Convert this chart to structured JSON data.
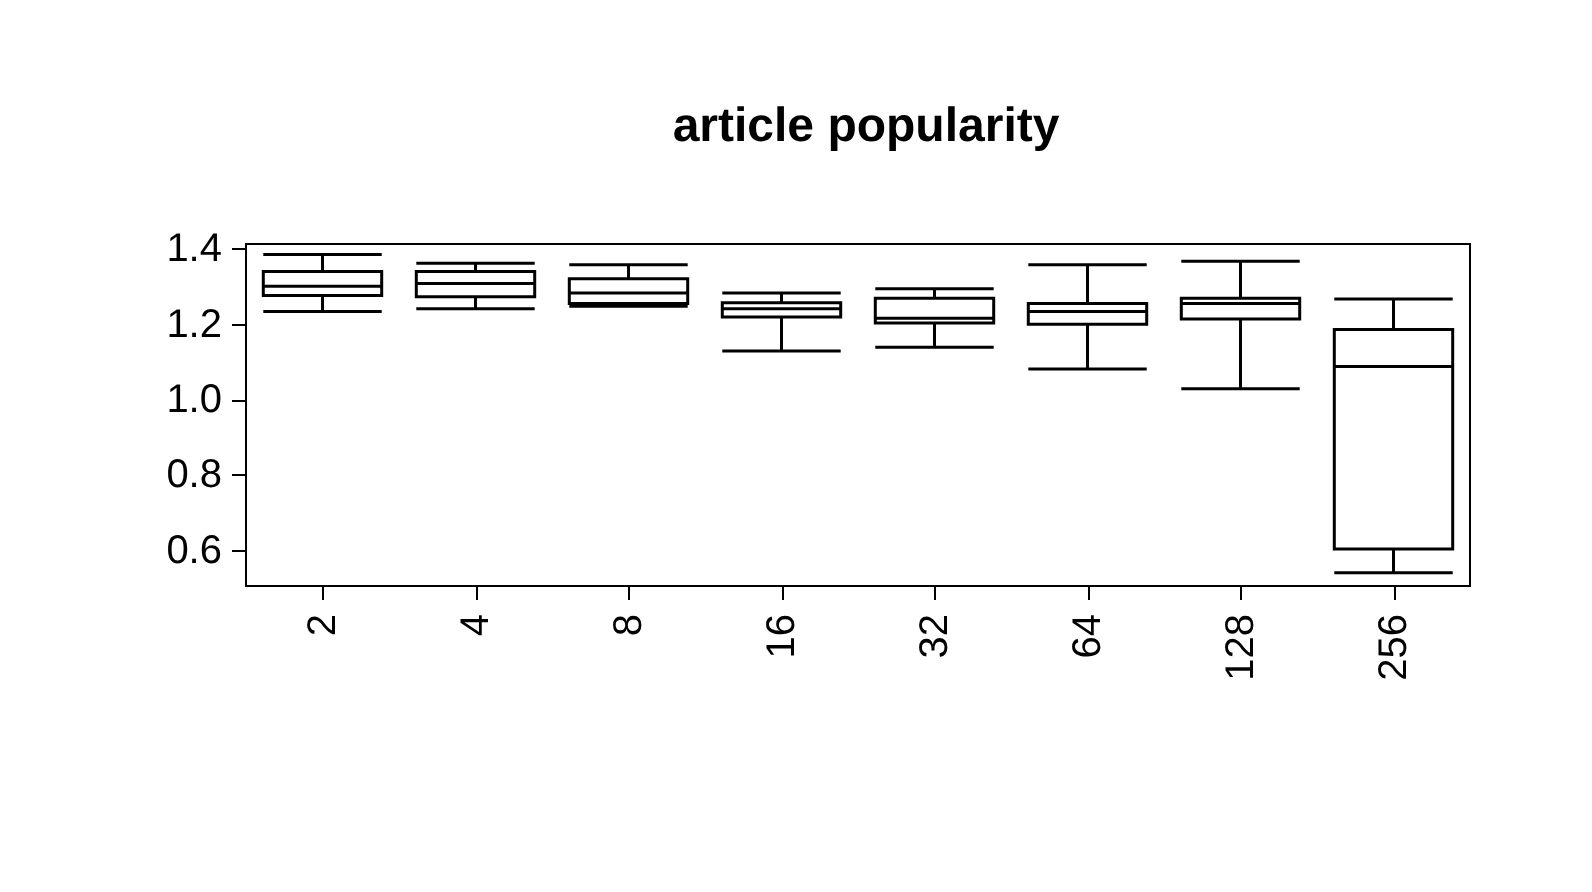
{
  "chart_data": {
    "type": "box",
    "title": "article popularity",
    "categories": [
      "2",
      "4",
      "8",
      "16",
      "32",
      "64",
      "128",
      "256"
    ],
    "boxes": [
      {
        "low": 1.235,
        "q1": 1.277,
        "median": 1.302,
        "q3": 1.341,
        "high": 1.386
      },
      {
        "low": 1.242,
        "q1": 1.274,
        "median": 1.309,
        "q3": 1.341,
        "high": 1.363
      },
      {
        "low": 1.249,
        "q1": 1.256,
        "median": 1.284,
        "q3": 1.322,
        "high": 1.359
      },
      {
        "low": 1.13,
        "q1": 1.22,
        "median": 1.242,
        "q3": 1.258,
        "high": 1.284
      },
      {
        "low": 1.14,
        "q1": 1.204,
        "median": 1.217,
        "q3": 1.27,
        "high": 1.295
      },
      {
        "low": 1.082,
        "q1": 1.201,
        "median": 1.235,
        "q3": 1.256,
        "high": 1.359
      },
      {
        "low": 1.03,
        "q1": 1.215,
        "median": 1.256,
        "q3": 1.27,
        "high": 1.368
      },
      {
        "low": 0.541,
        "q1": 0.604,
        "median": 1.089,
        "q3": 1.187,
        "high": 1.268
      }
    ],
    "color": "#000000",
    "ylim": [
      0.506,
      1.414
    ],
    "yticks": [
      0.6,
      0.8,
      {
        "value": 1.0,
        "label": "1.0"
      },
      1.2,
      1.4
    ]
  }
}
